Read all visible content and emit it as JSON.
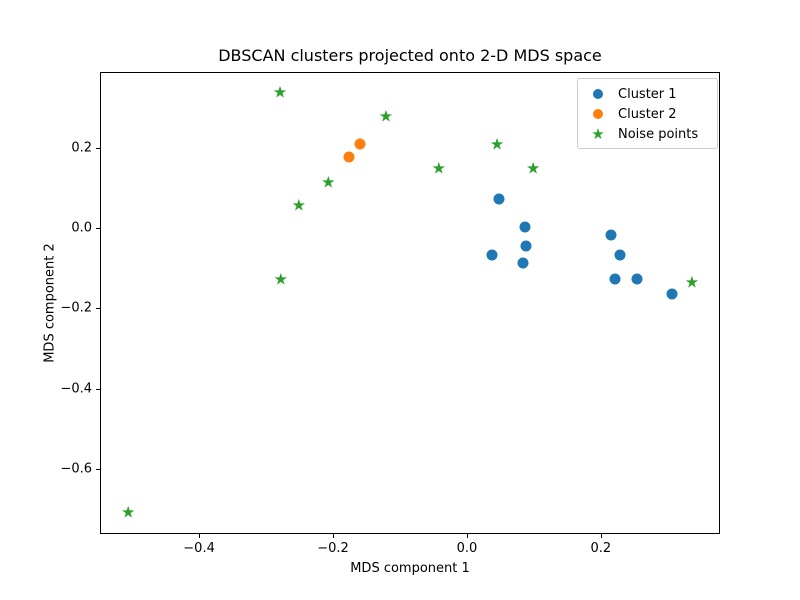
{
  "figure": {
    "background_color": "#ffffff",
    "axes_edge_color": "#000000"
  },
  "icons": {
    "star": "★"
  },
  "chart_data": {
    "type": "scatter",
    "title": "DBSCAN clusters projected onto 2-D MDS space",
    "xlabel": "MDS component 1",
    "ylabel": "MDS component 2",
    "xlim": [
      -0.548,
      0.378
    ],
    "ylim": [
      -0.763,
      0.39
    ],
    "grid": false,
    "legend_position": "upper right",
    "xticks": [
      {
        "value": -0.4,
        "label": "−0.4"
      },
      {
        "value": -0.2,
        "label": "−0.2"
      },
      {
        "value": 0.0,
        "label": "0.0"
      },
      {
        "value": 0.2,
        "label": "0.2"
      }
    ],
    "yticks": [
      {
        "value": 0.2,
        "label": "0.2"
      },
      {
        "value": 0.0,
        "label": "0.0"
      },
      {
        "value": -0.2,
        "label": "−0.2"
      },
      {
        "value": -0.4,
        "label": "−0.4"
      },
      {
        "value": -0.6,
        "label": "−0.6"
      }
    ],
    "series": [
      {
        "name": "Cluster 1",
        "marker": "circle",
        "color": "#1f77b4",
        "points": [
          [
            0.048,
            0.073
          ],
          [
            0.087,
            0.002
          ],
          [
            0.088,
            -0.045
          ],
          [
            0.038,
            -0.066
          ],
          [
            0.084,
            -0.086
          ],
          [
            0.215,
            -0.018
          ],
          [
            0.229,
            -0.067
          ],
          [
            0.221,
            -0.126
          ],
          [
            0.254,
            -0.126
          ],
          [
            0.307,
            -0.164
          ]
        ]
      },
      {
        "name": "Cluster 2",
        "marker": "circle",
        "color": "#ff7f0e",
        "points": [
          [
            -0.176,
            0.177
          ],
          [
            -0.159,
            0.21
          ]
        ]
      },
      {
        "name": "Noise points",
        "marker": "star",
        "color": "#2ca02c",
        "points": [
          [
            -0.279,
            0.338
          ],
          [
            -0.121,
            0.278
          ],
          [
            -0.207,
            0.114
          ],
          [
            -0.251,
            0.056
          ],
          [
            0.045,
            0.208
          ],
          [
            -0.042,
            0.147
          ],
          [
            0.099,
            0.147
          ],
          [
            0.336,
            -0.136
          ],
          [
            -0.278,
            -0.128
          ],
          [
            -0.506,
            -0.711
          ]
        ]
      }
    ]
  }
}
